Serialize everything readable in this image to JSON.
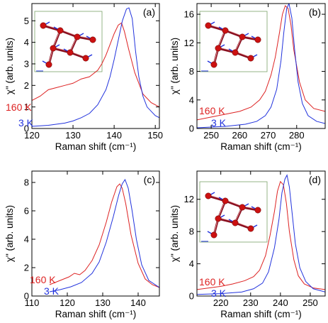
{
  "figure": {
    "background": "#ffffff",
    "red": "#dd2222",
    "blue": "#2233dd",
    "axis_color": "#000000"
  },
  "chart_data": [
    {
      "id": "a",
      "type": "line",
      "panel_label": "(a)",
      "xlabel": "Raman shift (cm⁻¹)",
      "ylabel": "χ\" (arb. units)",
      "xlim": [
        120,
        151
      ],
      "ylim": [
        0,
        5.8
      ],
      "xticks": [
        120,
        130,
        140,
        150
      ],
      "yticks": [
        0,
        1,
        2,
        3,
        4,
        5
      ],
      "inset": true,
      "series": [
        {
          "name": "160 K",
          "color": "#dd2222",
          "x": [
            120,
            122,
            124,
            126,
            128,
            130,
            132,
            134,
            136,
            137,
            138,
            139,
            140,
            141,
            141.8,
            142.5,
            143.5,
            145,
            147,
            149,
            151
          ],
          "y": [
            1.3,
            1.5,
            1.8,
            1.9,
            2.0,
            2.1,
            2.3,
            2.4,
            2.7,
            3.0,
            3.4,
            3.9,
            4.4,
            4.8,
            4.9,
            4.5,
            3.7,
            2.6,
            1.6,
            1.2,
            1.0
          ]
        },
        {
          "name": "3 K",
          "color": "#2233dd",
          "x": [
            120,
            124,
            128,
            130,
            132,
            134,
            136,
            138,
            139,
            140,
            141,
            142,
            143,
            143.6,
            144.4,
            145.2,
            146,
            147,
            148,
            150,
            151
          ],
          "y": [
            0.1,
            0.15,
            0.25,
            0.35,
            0.5,
            0.7,
            1.1,
            1.8,
            2.4,
            3.2,
            4.1,
            5.0,
            5.55,
            5.6,
            5.1,
            3.6,
            2.4,
            1.5,
            1.0,
            0.6,
            0.5
          ]
        }
      ]
    },
    {
      "id": "b",
      "type": "line",
      "panel_label": "(b)",
      "xlabel": "Raman shift (cm⁻¹)",
      "ylabel": "χ\" (arb. units)",
      "xlim": [
        245,
        290
      ],
      "ylim": [
        0,
        17.5
      ],
      "xticks": [
        250,
        260,
        270,
        280
      ],
      "yticks": [
        0,
        4,
        8,
        12,
        16
      ],
      "inset": true,
      "series": [
        {
          "name": "160 K",
          "color": "#dd2222",
          "x": [
            245,
            250,
            255,
            260,
            264,
            267,
            269,
            271,
            272.5,
            274,
            275,
            276,
            277,
            278,
            279,
            281,
            283,
            286,
            290
          ],
          "y": [
            1.2,
            1.6,
            2.0,
            2.4,
            3.0,
            4.0,
            5.2,
            7.5,
            10.0,
            13.5,
            16.0,
            17.2,
            16.8,
            14.5,
            11.0,
            6.5,
            4.0,
            2.8,
            2.4
          ]
        },
        {
          "name": "3 K",
          "color": "#2233dd",
          "x": [
            245,
            255,
            262,
            266,
            269,
            271,
            273,
            274.5,
            275.5,
            276.5,
            277.3,
            278.3,
            279.3,
            280.5,
            282,
            284,
            287,
            290
          ],
          "y": [
            0.1,
            0.3,
            0.6,
            1.0,
            1.8,
            3.0,
            5.5,
            9.5,
            13.5,
            16.8,
            17.5,
            15.5,
            11.0,
            6.5,
            3.5,
            1.8,
            1.0,
            0.7
          ]
        }
      ]
    },
    {
      "id": "c",
      "type": "line",
      "panel_label": "(c)",
      "xlabel": "Raman shift (cm⁻¹)",
      "ylabel": "χ\" (arb. units)",
      "xlim": [
        110,
        146
      ],
      "ylim": [
        0,
        8.8
      ],
      "xticks": [
        110,
        120,
        130,
        140
      ],
      "yticks": [
        0,
        2,
        4,
        6,
        8
      ],
      "inset": false,
      "series": [
        {
          "name": "160 K",
          "color": "#dd2222",
          "x": [
            115,
            117,
            119,
            120.5,
            122,
            123.5,
            125,
            127,
            129,
            131,
            132.5,
            134,
            134.8,
            135.5,
            136.5,
            138,
            140,
            142,
            144,
            146
          ],
          "y": [
            0.8,
            1.0,
            1.2,
            1.35,
            1.6,
            1.5,
            1.8,
            2.5,
            3.6,
            5.2,
            6.6,
            7.7,
            7.9,
            7.6,
            6.5,
            4.3,
            2.3,
            1.2,
            0.8,
            0.6
          ]
        },
        {
          "name": "3 K",
          "color": "#2233dd",
          "x": [
            115,
            118,
            121,
            124,
            127,
            129,
            131,
            133,
            134.5,
            135.5,
            136.3,
            137.2,
            138.3,
            139.5,
            141,
            143,
            146
          ],
          "y": [
            0.3,
            0.45,
            0.65,
            0.95,
            1.6,
            2.4,
            3.8,
            5.6,
            7.1,
            7.9,
            8.2,
            7.6,
            6.0,
            4.0,
            2.2,
            1.1,
            0.6
          ]
        }
      ]
    },
    {
      "id": "d",
      "type": "line",
      "panel_label": "(d)",
      "xlabel": "Raman shift (cm⁻¹)",
      "ylabel": "χ\" (arb. units)",
      "xlim": [
        212,
        255
      ],
      "ylim": [
        0,
        15.5
      ],
      "xticks": [
        220,
        230,
        240,
        250
      ],
      "yticks": [
        0,
        4,
        8,
        12
      ],
      "inset": true,
      "series": [
        {
          "name": "160 K",
          "color": "#dd2222",
          "x": [
            212,
            216,
            220,
            224,
            228,
            231,
            233,
            235,
            236.5,
            238,
            239,
            240,
            241,
            242,
            243,
            244.5,
            246,
            248,
            251,
            255
          ],
          "y": [
            0.8,
            1.0,
            1.2,
            1.5,
            1.9,
            2.4,
            3.2,
            5.0,
            7.5,
            10.5,
            13.0,
            14.2,
            13.8,
            11.5,
            8.0,
            4.5,
            2.5,
            1.5,
            1.0,
            0.8
          ]
        },
        {
          "name": "3 K",
          "color": "#2233dd",
          "x": [
            212,
            220,
            227,
            231,
            234,
            236,
            238,
            239.5,
            240.5,
            241.5,
            242.2,
            243,
            244,
            245,
            246.5,
            248.5,
            251,
            255
          ],
          "y": [
            0.2,
            0.3,
            0.5,
            0.9,
            1.6,
            3.0,
            6.0,
            9.5,
            12.8,
            14.5,
            15.0,
            13.5,
            10.0,
            6.5,
            3.5,
            1.8,
            0.9,
            0.5
          ]
        }
      ]
    }
  ]
}
